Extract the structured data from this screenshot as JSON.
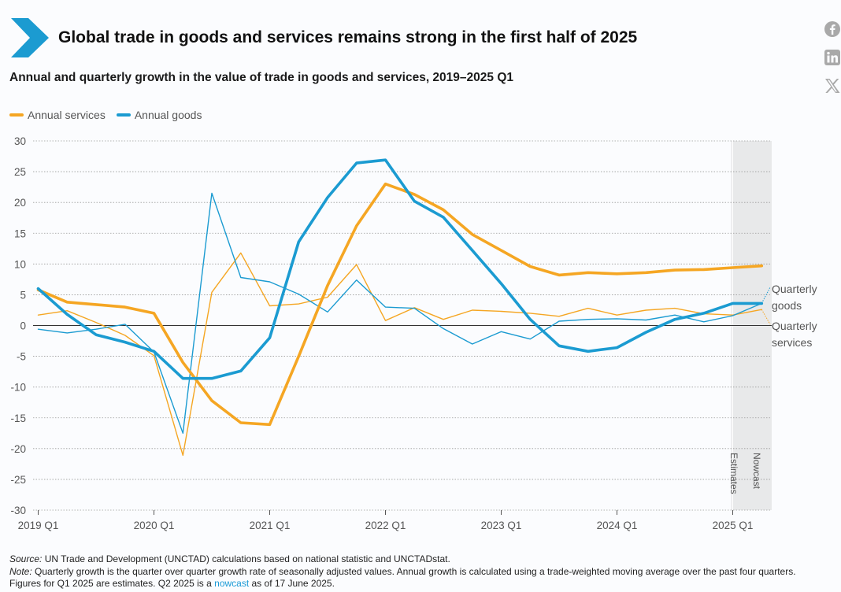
{
  "header": {
    "title": "Global trade in goods and services remains strong in the first half of 2025",
    "subtitle": "Annual and quarterly growth in the value of trade in goods and services, 2019–2025 Q1"
  },
  "social": {
    "icons": [
      "facebook-icon",
      "linkedin-icon",
      "x-icon"
    ]
  },
  "colors": {
    "services": "#f5a623",
    "goods": "#1b9bd1"
  },
  "legend": {
    "services_label": "Annual services",
    "goods_label": "Annual goods"
  },
  "chart_data": {
    "type": "line",
    "x_labels": [
      "2019 Q1",
      "2020 Q1",
      "2021 Q1",
      "2022 Q1",
      "2023 Q1",
      "2024 Q1",
      "2025 Q1"
    ],
    "x_quarters": [
      "2019 Q1",
      "2019 Q2",
      "2019 Q3",
      "2019 Q4",
      "2020 Q1",
      "2020 Q2",
      "2020 Q3",
      "2020 Q4",
      "2021 Q1",
      "2021 Q2",
      "2021 Q3",
      "2021 Q4",
      "2022 Q1",
      "2022 Q2",
      "2022 Q3",
      "2022 Q4",
      "2023 Q1",
      "2023 Q2",
      "2023 Q3",
      "2023 Q4",
      "2024 Q1",
      "2024 Q2",
      "2024 Q3",
      "2024 Q4",
      "2025 Q1",
      "2025 Q2"
    ],
    "ylim": [
      -30,
      30
    ],
    "yticks": [
      30,
      25,
      20,
      15,
      10,
      5,
      0,
      -5,
      -10,
      -15,
      -20,
      -25,
      -30
    ],
    "series": [
      {
        "name": "Annual services",
        "style": "thick",
        "color": "#f5a623",
        "values": [
          5.8,
          3.8,
          3.4,
          3.0,
          2.0,
          -6.0,
          -12.2,
          -15.8,
          -16.1,
          -5.0,
          6.5,
          16.2,
          23.0,
          21.3,
          18.8,
          14.8,
          12.2,
          9.6,
          8.2,
          8.6,
          8.4,
          8.6,
          9.0,
          9.1,
          9.4,
          9.7
        ]
      },
      {
        "name": "Annual goods",
        "style": "thick",
        "color": "#1b9bd1",
        "values": [
          6.0,
          1.8,
          -1.5,
          -2.7,
          -4.2,
          -8.6,
          -8.6,
          -7.4,
          -2.0,
          13.6,
          20.8,
          26.4,
          26.9,
          20.2,
          17.6,
          12.2,
          6.8,
          1.0,
          -3.3,
          -4.2,
          -3.6,
          -1.1,
          1.0,
          2.0,
          3.6,
          3.6
        ]
      },
      {
        "name": "Quarterly services",
        "style": "thin",
        "color": "#f5a623",
        "values": [
          1.7,
          2.4,
          0.5,
          -1.6,
          -4.9,
          -21.1,
          5.4,
          11.8,
          3.2,
          3.5,
          4.6,
          9.9,
          0.8,
          2.9,
          1.0,
          2.5,
          2.3,
          2.0,
          1.5,
          2.8,
          1.7,
          2.5,
          2.8,
          1.9,
          1.7,
          2.6
        ]
      },
      {
        "name": "Quarterly goods",
        "style": "thin",
        "color": "#1b9bd1",
        "values": [
          -0.6,
          -1.2,
          -0.6,
          0.2,
          -4.3,
          -17.5,
          21.5,
          7.8,
          7.1,
          5.1,
          2.2,
          7.4,
          3.0,
          2.8,
          -0.5,
          -3.0,
          -1.0,
          -2.2,
          0.7,
          1.0,
          1.1,
          0.9,
          1.7,
          0.6,
          1.6,
          3.6
        ]
      }
    ],
    "end_labels": {
      "goods": [
        "Quarterly",
        "goods"
      ],
      "services": [
        "Quarterly",
        "services"
      ]
    },
    "band_labels": {
      "estimates": "Estimates",
      "nowcast": "Nowcast"
    }
  },
  "footer": {
    "source_label": "Source:",
    "source_text": " UN Trade and Development (UNCTAD) calculations based on national statistic and UNCTADstat.",
    "note_label": "Note:",
    "note_text": " Quarterly growth is the quarter over quarter growth rate of seasonally adjusted values. Annual growth is calculated using a trade-weighted moving average over the past four quarters. Figures for Q1 2025 are estimates. Q2 2025 is a ",
    "note_link": "nowcast",
    "note_end": " as of 17 June 2025."
  }
}
